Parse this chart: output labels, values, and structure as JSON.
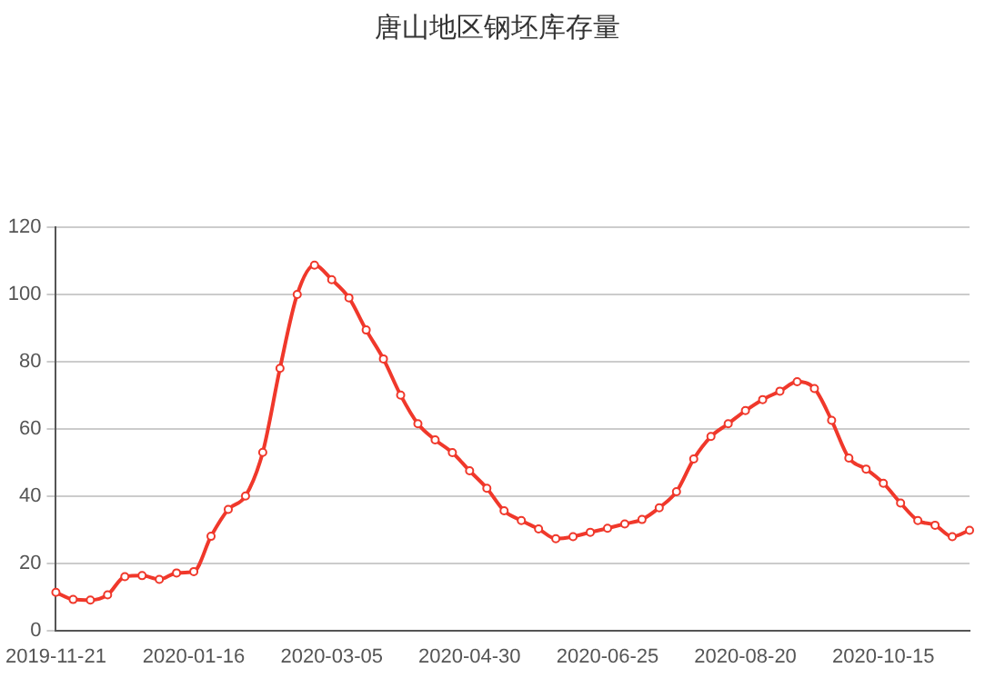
{
  "chart_data": {
    "type": "line",
    "title": "唐山地区钢坯库存量",
    "categories": [
      "2019-11-21",
      null,
      null,
      null,
      null,
      null,
      null,
      null,
      "2020-01-16",
      null,
      null,
      null,
      null,
      null,
      null,
      null,
      "2020-03-05",
      null,
      null,
      null,
      null,
      null,
      null,
      null,
      "2020-04-30",
      null,
      null,
      null,
      null,
      null,
      null,
      null,
      "2020-06-25",
      null,
      null,
      null,
      null,
      null,
      null,
      null,
      "2020-08-20",
      null,
      null,
      null,
      null,
      null,
      null,
      null,
      "2020-10-15",
      null,
      null,
      null,
      null,
      null
    ],
    "series": [
      {
        "color": "#f0382b",
        "values": [
          11.3,
          9.2,
          9,
          10.6,
          16,
          16.3,
          15.2,
          17.1,
          17.5,
          28,
          36,
          40,
          53,
          78,
          100,
          108.7,
          104.4,
          99,
          89.4,
          80.8,
          70,
          61.5,
          56.7,
          52.9,
          47.5,
          42.3,
          35.6,
          32.7,
          30.2,
          27.3,
          27.9,
          29.2,
          30.4,
          31.7,
          33,
          36.5,
          41.3,
          51,
          57.7,
          61.5,
          65.4,
          68.7,
          71.2,
          74,
          72,
          62.5,
          51.3,
          48,
          43.8,
          37.9,
          32.7,
          31.3,
          27.9,
          29.8
        ]
      }
    ],
    "ylim": [
      0,
      120
    ],
    "yticks": [
      0,
      20,
      40,
      60,
      80,
      100,
      120
    ],
    "grid": "y",
    "legend": false,
    "marker": "circle",
    "line_style": "solid"
  }
}
